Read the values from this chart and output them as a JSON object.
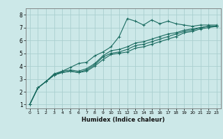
{
  "xlabel": "Humidex (Indice chaleur)",
  "xlim": [
    -0.5,
    23.5
  ],
  "ylim": [
    0.7,
    8.5
  ],
  "bg_color": "#cce8e8",
  "line_color": "#1a6b60",
  "grid_color": "#aacfcf",
  "series": [
    [
      0,
      1.0,
      1,
      2.3,
      2,
      2.8,
      3,
      3.3,
      4,
      3.6,
      5,
      3.9,
      6,
      4.2,
      7,
      4.3,
      8,
      4.8,
      9,
      5.1,
      10,
      5.5,
      11,
      6.3,
      12,
      7.7,
      13,
      7.5,
      14,
      7.2,
      15,
      7.6,
      16,
      7.3,
      17,
      7.5,
      18,
      7.3,
      19,
      7.2,
      20,
      7.1,
      21,
      7.2,
      22,
      7.2,
      23,
      7.2
    ],
    [
      0,
      1.0,
      1,
      2.3,
      2,
      2.8,
      3,
      3.4,
      4,
      3.6,
      5,
      3.7,
      6,
      3.6,
      7,
      3.8,
      8,
      4.2,
      9,
      4.8,
      10,
      5.2,
      11,
      5.3,
      12,
      5.5,
      13,
      5.8,
      14,
      5.9,
      15,
      6.1,
      16,
      6.3,
      17,
      6.5,
      18,
      6.6,
      19,
      6.8,
      20,
      6.9,
      21,
      7.0,
      22,
      7.1,
      23,
      7.1
    ],
    [
      0,
      1.0,
      1,
      2.3,
      2,
      2.8,
      3,
      3.3,
      4,
      3.5,
      5,
      3.6,
      6,
      3.5,
      7,
      3.7,
      8,
      4.1,
      9,
      4.7,
      10,
      5.0,
      11,
      5.1,
      12,
      5.3,
      13,
      5.6,
      14,
      5.7,
      15,
      5.9,
      16,
      6.1,
      17,
      6.3,
      18,
      6.5,
      19,
      6.7,
      20,
      6.8,
      21,
      7.0,
      22,
      7.1,
      23,
      7.1
    ],
    [
      0,
      1.0,
      1,
      2.3,
      2,
      2.8,
      3,
      3.3,
      4,
      3.5,
      5,
      3.6,
      6,
      3.5,
      7,
      3.6,
      8,
      4.0,
      9,
      4.5,
      10,
      4.9,
      11,
      5.0,
      12,
      5.1,
      13,
      5.4,
      14,
      5.5,
      15,
      5.7,
      16,
      5.9,
      17,
      6.1,
      18,
      6.3,
      19,
      6.6,
      20,
      6.7,
      21,
      6.9,
      22,
      7.0,
      23,
      7.1
    ]
  ],
  "xticks": [
    0,
    1,
    2,
    3,
    4,
    5,
    6,
    7,
    8,
    9,
    10,
    11,
    12,
    13,
    14,
    15,
    16,
    17,
    18,
    19,
    20,
    21,
    22,
    23
  ],
  "yticks": [
    1,
    2,
    3,
    4,
    5,
    6,
    7,
    8
  ]
}
